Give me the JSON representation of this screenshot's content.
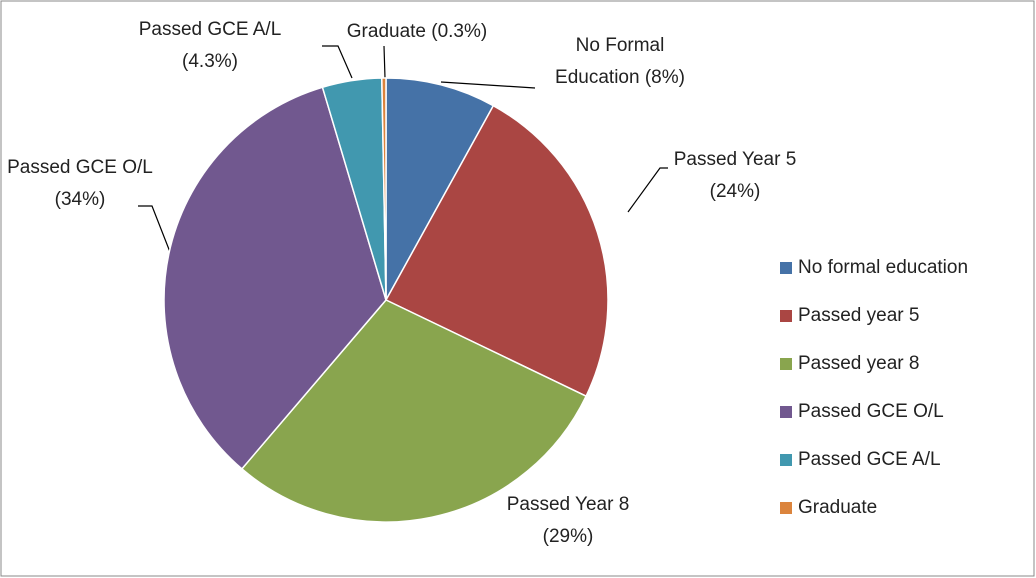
{
  "chart_data": {
    "type": "pie",
    "categories": [
      "No formal education",
      "Passed year 5",
      "Passed year 8",
      "Passed GCE O/L",
      "Passed GCE A/L",
      "Graduate"
    ],
    "values": [
      8,
      24,
      29,
      34,
      4.3,
      0.3
    ],
    "value_labels": [
      [
        "No Formal",
        "Education (8%)"
      ],
      [
        "Passed Year 5",
        "(24%)"
      ],
      [
        "Passed Year 8",
        "(29%)"
      ],
      [
        "Passed GCE O/L",
        "(34%)"
      ],
      [
        "Passed GCE A/L",
        "(4.3%)"
      ],
      [
        "Graduate (0.3%)"
      ]
    ],
    "colors": [
      "#4572a7",
      "#aa4643",
      "#89a54e",
      "#71588f",
      "#4198af",
      "#db843d"
    ],
    "legend": "right"
  }
}
